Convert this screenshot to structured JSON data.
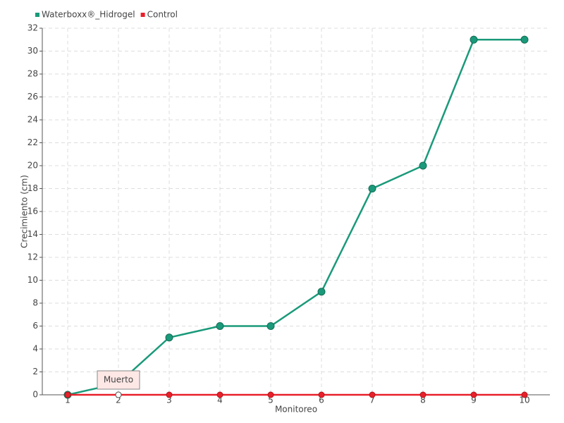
{
  "chart_data": {
    "type": "line",
    "x_label": "Monitoreo",
    "y_label": "Crecimiento (cm)",
    "categories": [
      "1",
      "2",
      "3",
      "4",
      "5",
      "6",
      "7",
      "8",
      "9",
      "10"
    ],
    "series": [
      {
        "name": "Waterboxx®_Hidrogel",
        "color": "#1a9a7a",
        "values": [
          0,
          1,
          5,
          6,
          6,
          9,
          18,
          20,
          31,
          31
        ]
      },
      {
        "name": "Control",
        "color": "#e8202a",
        "values": [
          0,
          0,
          0,
          0,
          0,
          0,
          0,
          0,
          0,
          0
        ]
      }
    ],
    "ylim": [
      0,
      32
    ],
    "yticks": [
      0,
      2,
      4,
      6,
      8,
      10,
      12,
      14,
      16,
      18,
      20,
      22,
      24,
      26,
      28,
      30,
      32
    ],
    "grid": true,
    "legend": "top-left",
    "annotation": {
      "text": "Muerto"
    }
  }
}
